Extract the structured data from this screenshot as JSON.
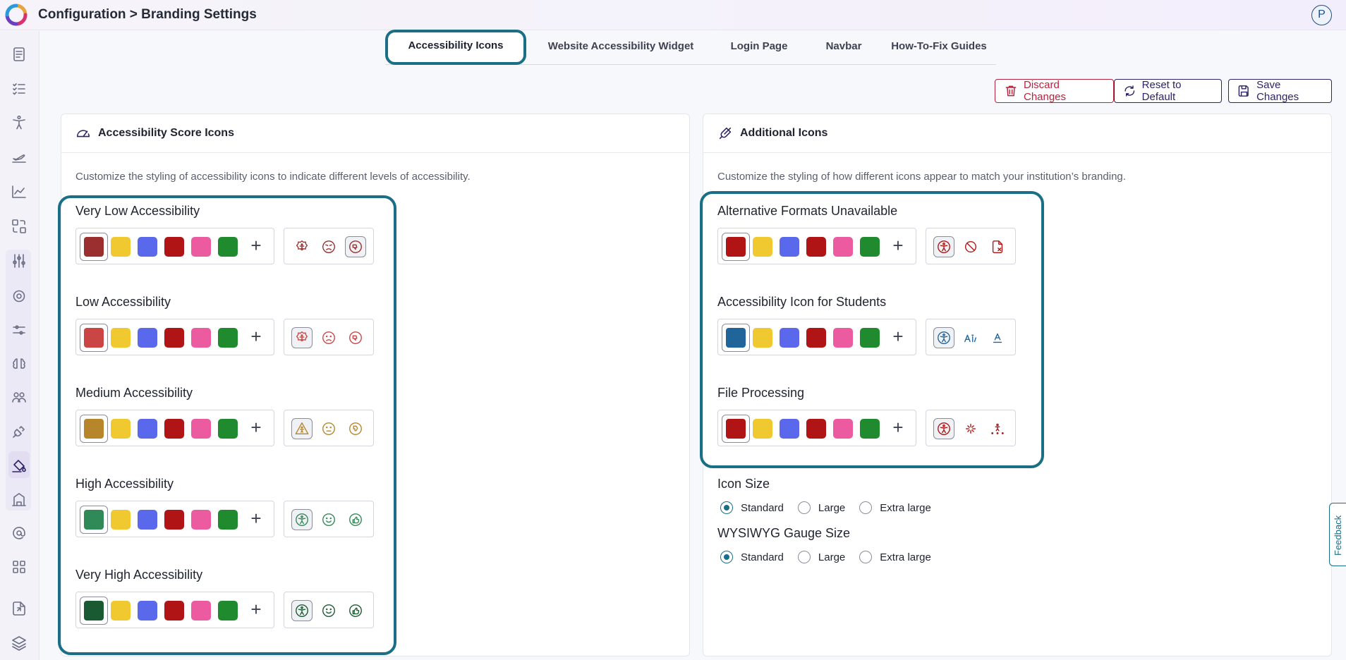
{
  "header": {
    "breadcrumb": "Configuration > Branding Settings",
    "avatar_initial": "P"
  },
  "tabs": [
    {
      "label": "Accessibility Icons",
      "active": true
    },
    {
      "label": "Website Accessibility Widget"
    },
    {
      "label": "Login Page"
    },
    {
      "label": "Navbar"
    },
    {
      "label": "How-To-Fix Guides"
    }
  ],
  "actions": {
    "discard": "Discard Changes",
    "reset": "Reset to Default",
    "save": "Save Changes"
  },
  "score_card": {
    "title": "Accessibility Score Icons",
    "description": "Customize the styling of accessibility icons to indicate different levels of accessibility.",
    "levels": [
      {
        "label": "Very Low Accessibility",
        "selected_color": "#9b2f2f"
      },
      {
        "label": "Low Accessibility",
        "selected_color": "#cc4545"
      },
      {
        "label": "Medium Accessibility",
        "selected_color": "#b8862a"
      },
      {
        "label": "High Accessibility",
        "selected_color": "#2f8a57"
      },
      {
        "label": "Very High Accessibility",
        "selected_color": "#1a5a33"
      }
    ]
  },
  "additional_card": {
    "title": "Additional Icons",
    "description": "Customize the styling of how different icons appear to match your institution’s branding.",
    "groups": [
      {
        "label": "Alternative Formats Unavailable",
        "selected_color": "#b01414"
      },
      {
        "label": "Accessibility Icon for Students",
        "selected_color": "#20659a"
      },
      {
        "label": "File Processing",
        "selected_color": "#b01414"
      }
    ],
    "icon_size": {
      "label": "Icon Size",
      "options": [
        "Standard",
        "Large",
        "Extra large"
      ],
      "selected": "Standard"
    },
    "gauge_size": {
      "label": "WYSIWYG Gauge Size",
      "options": [
        "Standard",
        "Large",
        "Extra large"
      ],
      "selected": "Standard"
    }
  },
  "palette": [
    "#f0c930",
    "#5a68ec",
    "#b01414",
    "#ec5aa0",
    "#1f8a2e"
  ],
  "feedback_label": "Feedback"
}
